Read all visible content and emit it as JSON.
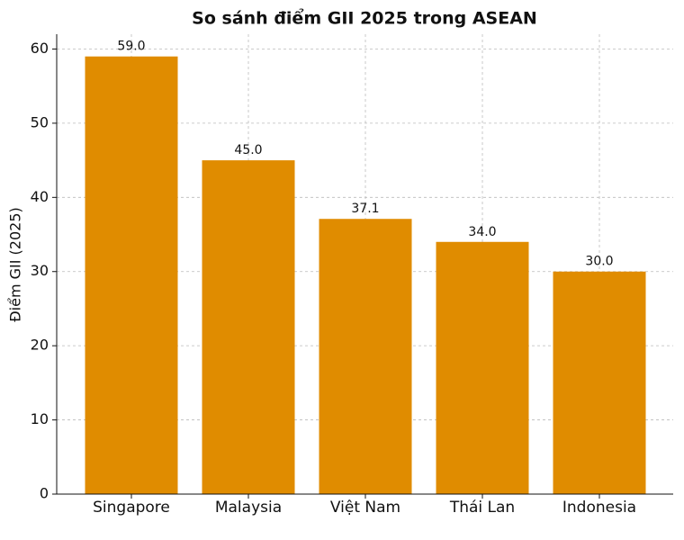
{
  "chart_data": {
    "type": "bar",
    "title": "So sánh điểm GII 2025 trong ASEAN",
    "y_label": "Điểm GII (2025)",
    "categories": [
      "Singapore",
      "Malaysia",
      "Việt Nam",
      "Thái Lan",
      "Indonesia"
    ],
    "values": [
      59.0,
      45.0,
      37.1,
      34.0,
      30.0
    ],
    "value_labels": [
      "59.0",
      "45.0",
      "37.1",
      "34.0",
      "30.0"
    ],
    "color": "#e08c00",
    "ylim": [
      0,
      62
    ],
    "yticks": [
      0,
      10,
      20,
      30,
      40,
      50,
      60
    ],
    "grid": true
  }
}
